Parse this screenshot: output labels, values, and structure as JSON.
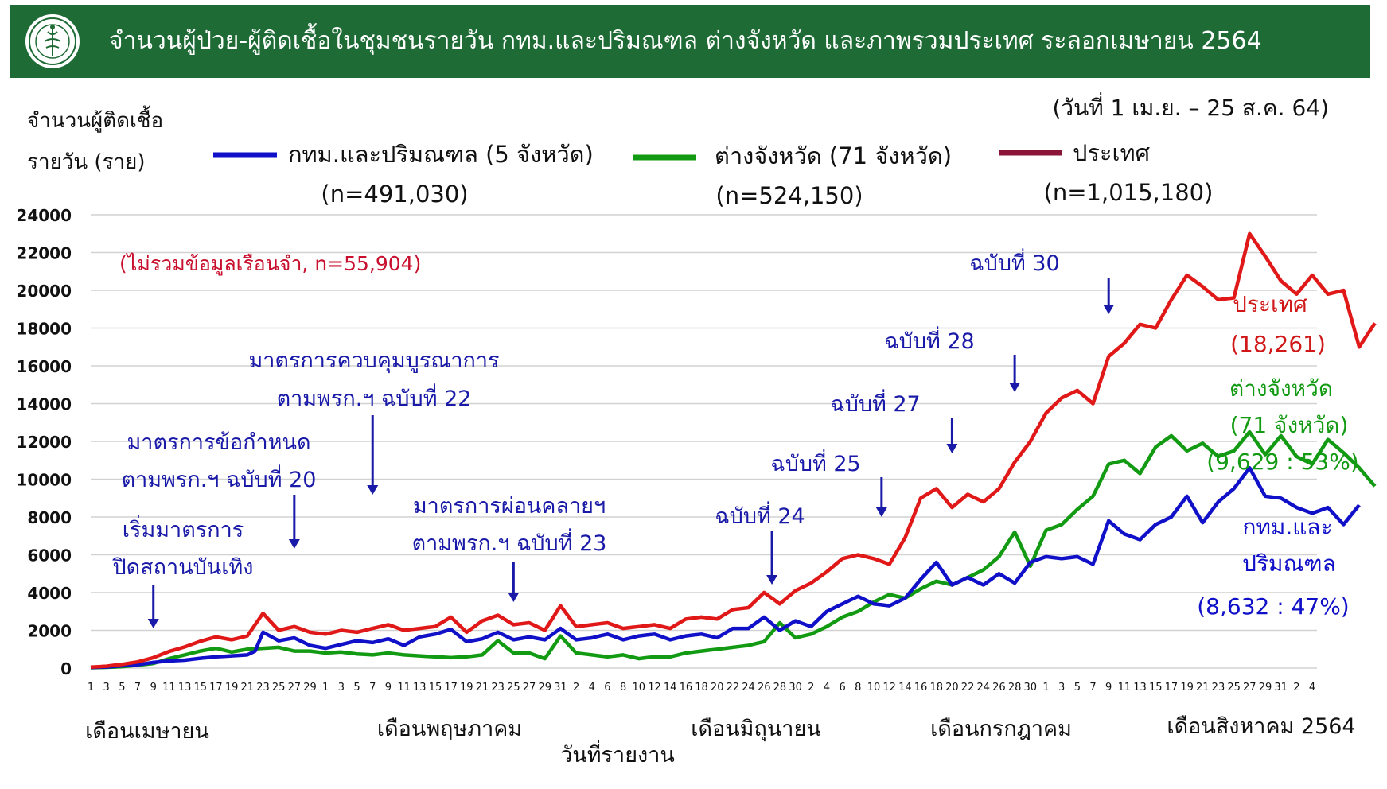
{
  "header": {
    "title": "จำนวนผู้ป่วย-ผู้ติดเชื้อในชุมชนรายวัน กทม.และปริมณฑล ต่างจังหวัด และภาพรวมประเทศ ระลอกเมษายน 2564",
    "bg_color": "#1f6b35"
  },
  "chart_data": {
    "type": "line",
    "date_range": "(วันที่ 1 เม.ย. – 25 ส.ค. 64)",
    "ylabel_line1": "จำนวนผู้ติดเชื้อ",
    "ylabel_line2": "รายวัน (ราย)",
    "xlabel": "วันที่รายงาน",
    "ylim": [
      0,
      24000
    ],
    "yticks": [
      0,
      2000,
      4000,
      6000,
      8000,
      10000,
      12000,
      14000,
      16000,
      18000,
      20000,
      22000,
      24000
    ],
    "grid": true,
    "x_day_labels": [
      "1",
      "3",
      "5",
      "7",
      "9",
      "11",
      "13",
      "15",
      "17",
      "19",
      "21",
      "23",
      "25",
      "27",
      "29",
      "1",
      "3",
      "5",
      "7",
      "9",
      "11",
      "13",
      "15",
      "17",
      "19",
      "21",
      "23",
      "25",
      "27",
      "29",
      "31",
      "2",
      "4",
      "6",
      "8",
      "10",
      "12",
      "14",
      "16",
      "18",
      "20",
      "22",
      "24",
      "26",
      "28",
      "30",
      "2",
      "4",
      "6",
      "8",
      "10",
      "12",
      "14",
      "16",
      "18",
      "20",
      "22",
      "24",
      "26",
      "28",
      "30",
      "1",
      "3",
      "5",
      "7",
      "9",
      "11",
      "13",
      "15",
      "17",
      "19",
      "21",
      "23",
      "25",
      "27",
      "29",
      "31",
      "2",
      "4"
    ],
    "months": [
      "เดือนเมษายน",
      "เดือนพฤษภาคม",
      "เดือนมิถุนายน",
      "เดือนกรกฎาคม",
      "เดือนสิงหาคม 2564"
    ],
    "note": "(ไม่รวมข้อมูลเรือนจำ, n=55,904)",
    "series": [
      {
        "name": "กทม.และปริมณฑล (5 จังหวัด)",
        "n_label": "(n=491,030)",
        "color": "#1010c8",
        "end_label_line1": "กทม.และ",
        "end_label_line2": "ปริมณฑล",
        "end_value_label": "(8,632 : 47%)",
        "anchors": [
          [
            1,
            30
          ],
          [
            3,
            60
          ],
          [
            5,
            120
          ],
          [
            7,
            180
          ],
          [
            9,
            300
          ],
          [
            11,
            380
          ],
          [
            13,
            420
          ],
          [
            15,
            520
          ],
          [
            17,
            600
          ],
          [
            19,
            650
          ],
          [
            21,
            700
          ],
          [
            22,
            900
          ],
          [
            23,
            1900
          ],
          [
            25,
            1450
          ],
          [
            27,
            1600
          ],
          [
            29,
            1200
          ],
          [
            31,
            1050
          ],
          [
            33,
            1250
          ],
          [
            35,
            1450
          ],
          [
            37,
            1350
          ],
          [
            39,
            1550
          ],
          [
            41,
            1200
          ],
          [
            43,
            1650
          ],
          [
            45,
            1800
          ],
          [
            47,
            2050
          ],
          [
            49,
            1400
          ],
          [
            51,
            1550
          ],
          [
            53,
            1900
          ],
          [
            55,
            1500
          ],
          [
            57,
            1650
          ],
          [
            59,
            1500
          ],
          [
            61,
            2100
          ],
          [
            63,
            1500
          ],
          [
            65,
            1600
          ],
          [
            67,
            1800
          ],
          [
            69,
            1500
          ],
          [
            71,
            1700
          ],
          [
            73,
            1800
          ],
          [
            75,
            1500
          ],
          [
            77,
            1700
          ],
          [
            79,
            1800
          ],
          [
            81,
            1600
          ],
          [
            83,
            2100
          ],
          [
            85,
            2100
          ],
          [
            87,
            2700
          ],
          [
            89,
            2000
          ],
          [
            91,
            2500
          ],
          [
            93,
            2200
          ],
          [
            95,
            3000
          ],
          [
            97,
            3400
          ],
          [
            99,
            3800
          ],
          [
            101,
            3400
          ],
          [
            103,
            3300
          ],
          [
            105,
            3700
          ],
          [
            107,
            4700
          ],
          [
            109,
            5600
          ],
          [
            111,
            4400
          ],
          [
            113,
            4800
          ],
          [
            115,
            4400
          ],
          [
            117,
            5000
          ],
          [
            119,
            4500
          ],
          [
            121,
            5600
          ],
          [
            123,
            5900
          ],
          [
            125,
            5800
          ],
          [
            127,
            5900
          ],
          [
            129,
            5500
          ],
          [
            131,
            7800
          ],
          [
            133,
            7100
          ],
          [
            135,
            6800
          ],
          [
            137,
            7600
          ],
          [
            139,
            8000
          ],
          [
            141,
            9100
          ],
          [
            143,
            7700
          ],
          [
            145,
            8800
          ],
          [
            147,
            9500
          ],
          [
            149,
            10600
          ],
          [
            151,
            9100
          ],
          [
            153,
            9000
          ],
          [
            155,
            8500
          ],
          [
            157,
            8200
          ],
          [
            159,
            8500
          ],
          [
            161,
            7600
          ],
          [
            163,
            8632
          ]
        ]
      },
      {
        "name": "ต่างจังหวัด (71 จังหวัด)",
        "n_label": "(n=524,150)",
        "color": "#129a12",
        "end_label_line1": "ต่างจังหวัด",
        "end_label_line2": "(71 จังหวัด)",
        "end_value_label": "(9,629 : 53%)",
        "anchors": [
          [
            1,
            20
          ],
          [
            3,
            40
          ],
          [
            5,
            80
          ],
          [
            7,
            150
          ],
          [
            9,
            250
          ],
          [
            11,
            500
          ],
          [
            13,
            700
          ],
          [
            15,
            900
          ],
          [
            17,
            1050
          ],
          [
            19,
            850
          ],
          [
            21,
            1000
          ],
          [
            23,
            1050
          ],
          [
            25,
            1100
          ],
          [
            27,
            900
          ],
          [
            29,
            900
          ],
          [
            31,
            800
          ],
          [
            33,
            850
          ],
          [
            35,
            750
          ],
          [
            37,
            700
          ],
          [
            39,
            800
          ],
          [
            41,
            700
          ],
          [
            43,
            650
          ],
          [
            45,
            600
          ],
          [
            47,
            550
          ],
          [
            49,
            600
          ],
          [
            51,
            700
          ],
          [
            53,
            1450
          ],
          [
            55,
            800
          ],
          [
            57,
            800
          ],
          [
            59,
            500
          ],
          [
            61,
            1700
          ],
          [
            63,
            800
          ],
          [
            65,
            700
          ],
          [
            67,
            600
          ],
          [
            69,
            700
          ],
          [
            71,
            500
          ],
          [
            73,
            600
          ],
          [
            75,
            600
          ],
          [
            77,
            800
          ],
          [
            79,
            900
          ],
          [
            81,
            1000
          ],
          [
            83,
            1100
          ],
          [
            85,
            1200
          ],
          [
            87,
            1400
          ],
          [
            89,
            2400
          ],
          [
            91,
            1600
          ],
          [
            93,
            1800
          ],
          [
            95,
            2200
          ],
          [
            97,
            2700
          ],
          [
            99,
            3000
          ],
          [
            101,
            3500
          ],
          [
            103,
            3900
          ],
          [
            105,
            3700
          ],
          [
            107,
            4200
          ],
          [
            109,
            4600
          ],
          [
            111,
            4400
          ],
          [
            113,
            4800
          ],
          [
            115,
            5200
          ],
          [
            117,
            5900
          ],
          [
            119,
            7200
          ],
          [
            121,
            5400
          ],
          [
            123,
            7300
          ],
          [
            125,
            7600
          ],
          [
            127,
            8400
          ],
          [
            129,
            9100
          ],
          [
            131,
            10800
          ],
          [
            133,
            11000
          ],
          [
            135,
            10300
          ],
          [
            137,
            11700
          ],
          [
            139,
            12300
          ],
          [
            141,
            11500
          ],
          [
            143,
            11900
          ],
          [
            145,
            11200
          ],
          [
            147,
            11500
          ],
          [
            149,
            12500
          ],
          [
            151,
            11300
          ],
          [
            153,
            12300
          ],
          [
            155,
            11200
          ],
          [
            157,
            10800
          ],
          [
            159,
            12100
          ],
          [
            161,
            11400
          ],
          [
            163,
            10600
          ],
          [
            165,
            9629
          ]
        ]
      },
      {
        "name": "ประเทศ",
        "n_label": "(n=1,015,180)",
        "color": "#e01818",
        "legend_color": "#8b1538",
        "end_label_line1": "ประเทศ",
        "end_value_label": "(18,261)",
        "anchors": [
          [
            1,
            50
          ],
          [
            3,
            100
          ],
          [
            5,
            200
          ],
          [
            7,
            330
          ],
          [
            9,
            550
          ],
          [
            11,
            880
          ],
          [
            13,
            1120
          ],
          [
            15,
            1420
          ],
          [
            17,
            1650
          ],
          [
            19,
            1500
          ],
          [
            21,
            1700
          ],
          [
            23,
            2900
          ],
          [
            25,
            2000
          ],
          [
            27,
            2200
          ],
          [
            29,
            1900
          ],
          [
            31,
            1800
          ],
          [
            33,
            2000
          ],
          [
            35,
            1900
          ],
          [
            37,
            2100
          ],
          [
            39,
            2300
          ],
          [
            41,
            2000
          ],
          [
            43,
            2100
          ],
          [
            45,
            2200
          ],
          [
            47,
            2700
          ],
          [
            49,
            1900
          ],
          [
            51,
            2500
          ],
          [
            53,
            2800
          ],
          [
            55,
            2300
          ],
          [
            57,
            2400
          ],
          [
            59,
            2000
          ],
          [
            61,
            3300
          ],
          [
            63,
            2200
          ],
          [
            65,
            2300
          ],
          [
            67,
            2400
          ],
          [
            69,
            2100
          ],
          [
            71,
            2200
          ],
          [
            73,
            2300
          ],
          [
            75,
            2100
          ],
          [
            77,
            2600
          ],
          [
            79,
            2700
          ],
          [
            81,
            2600
          ],
          [
            83,
            3100
          ],
          [
            85,
            3200
          ],
          [
            87,
            4000
          ],
          [
            89,
            3400
          ],
          [
            91,
            4100
          ],
          [
            93,
            4500
          ],
          [
            95,
            5100
          ],
          [
            97,
            5800
          ],
          [
            99,
            6000
          ],
          [
            101,
            5800
          ],
          [
            103,
            5500
          ],
          [
            105,
            6900
          ],
          [
            107,
            9000
          ],
          [
            109,
            9500
          ],
          [
            111,
            8500
          ],
          [
            113,
            9200
          ],
          [
            115,
            8800
          ],
          [
            117,
            9500
          ],
          [
            119,
            10900
          ],
          [
            121,
            12000
          ],
          [
            123,
            13500
          ],
          [
            125,
            14300
          ],
          [
            127,
            14700
          ],
          [
            129,
            14000
          ],
          [
            131,
            16500
          ],
          [
            133,
            17200
          ],
          [
            135,
            18200
          ],
          [
            137,
            18000
          ],
          [
            139,
            19500
          ],
          [
            141,
            20800
          ],
          [
            143,
            20200
          ],
          [
            145,
            19500
          ],
          [
            147,
            19600
          ],
          [
            149,
            23000
          ],
          [
            151,
            21800
          ],
          [
            153,
            20500
          ],
          [
            155,
            19800
          ],
          [
            157,
            20800
          ],
          [
            159,
            19800
          ],
          [
            161,
            20000
          ],
          [
            163,
            17000
          ],
          [
            165,
            18261
          ]
        ]
      }
    ],
    "annotations": [
      {
        "line1": "เริ่มมาตรการ",
        "line2": "ปิดสถานบันเทิง",
        "at_day": 9
      },
      {
        "line1": "มาตรการข้อกำหนด",
        "line2": "ตามพรก.ฯ ฉบับที่ 20",
        "at_day": 27
      },
      {
        "line1": "มาตรการควบคุมบูรณาการ",
        "line2": "ตามพรก.ฯ ฉบับที่ 22",
        "at_day": 37
      },
      {
        "line1": "มาตรการผ่อนคลายฯ",
        "line2": "ตามพรก.ฯ ฉบับที่ 23",
        "at_day": 55
      },
      {
        "line1": "ฉบับที่ 24",
        "at_day": 88
      },
      {
        "line1": "ฉบับที่ 25",
        "at_day": 102
      },
      {
        "line1": "ฉบับที่ 27",
        "at_day": 111
      },
      {
        "line1": "ฉบับที่ 28",
        "at_day": 119
      },
      {
        "line1": "ฉบับที่ 30",
        "at_day": 131
      }
    ]
  }
}
